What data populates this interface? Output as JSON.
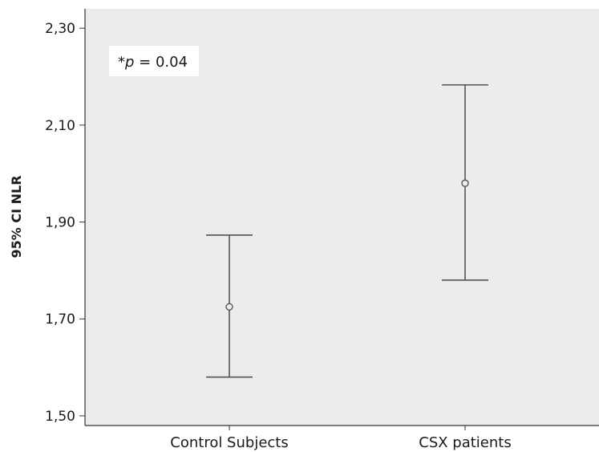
{
  "chart_data": {
    "type": "scatter",
    "subtype": "error-bar",
    "title": "",
    "xlabel": "",
    "ylabel": "95% CI NLR",
    "categories": [
      "Control Subjects",
      "CSX patients"
    ],
    "series": [
      {
        "values": [
          1.725,
          1.98
        ],
        "lower": [
          1.58,
          1.78
        ],
        "upper": [
          1.873,
          2.183
        ]
      }
    ],
    "ylim": [
      1.48,
      2.34
    ],
    "yticks": [
      1.5,
      1.7,
      1.9,
      2.1,
      2.3
    ],
    "ytick_labels": [
      "1,50",
      "1,70",
      "1,90",
      "2,10",
      "2,30"
    ],
    "grid": false,
    "legend": "none",
    "annotation": {
      "prefix": "*",
      "symbol": "p",
      "rest": " = 0.04"
    },
    "colors": {
      "plot_background": "#ececec",
      "annotation_background": "#ffffff",
      "error_bar": "#555555",
      "axis": "#333333"
    }
  }
}
